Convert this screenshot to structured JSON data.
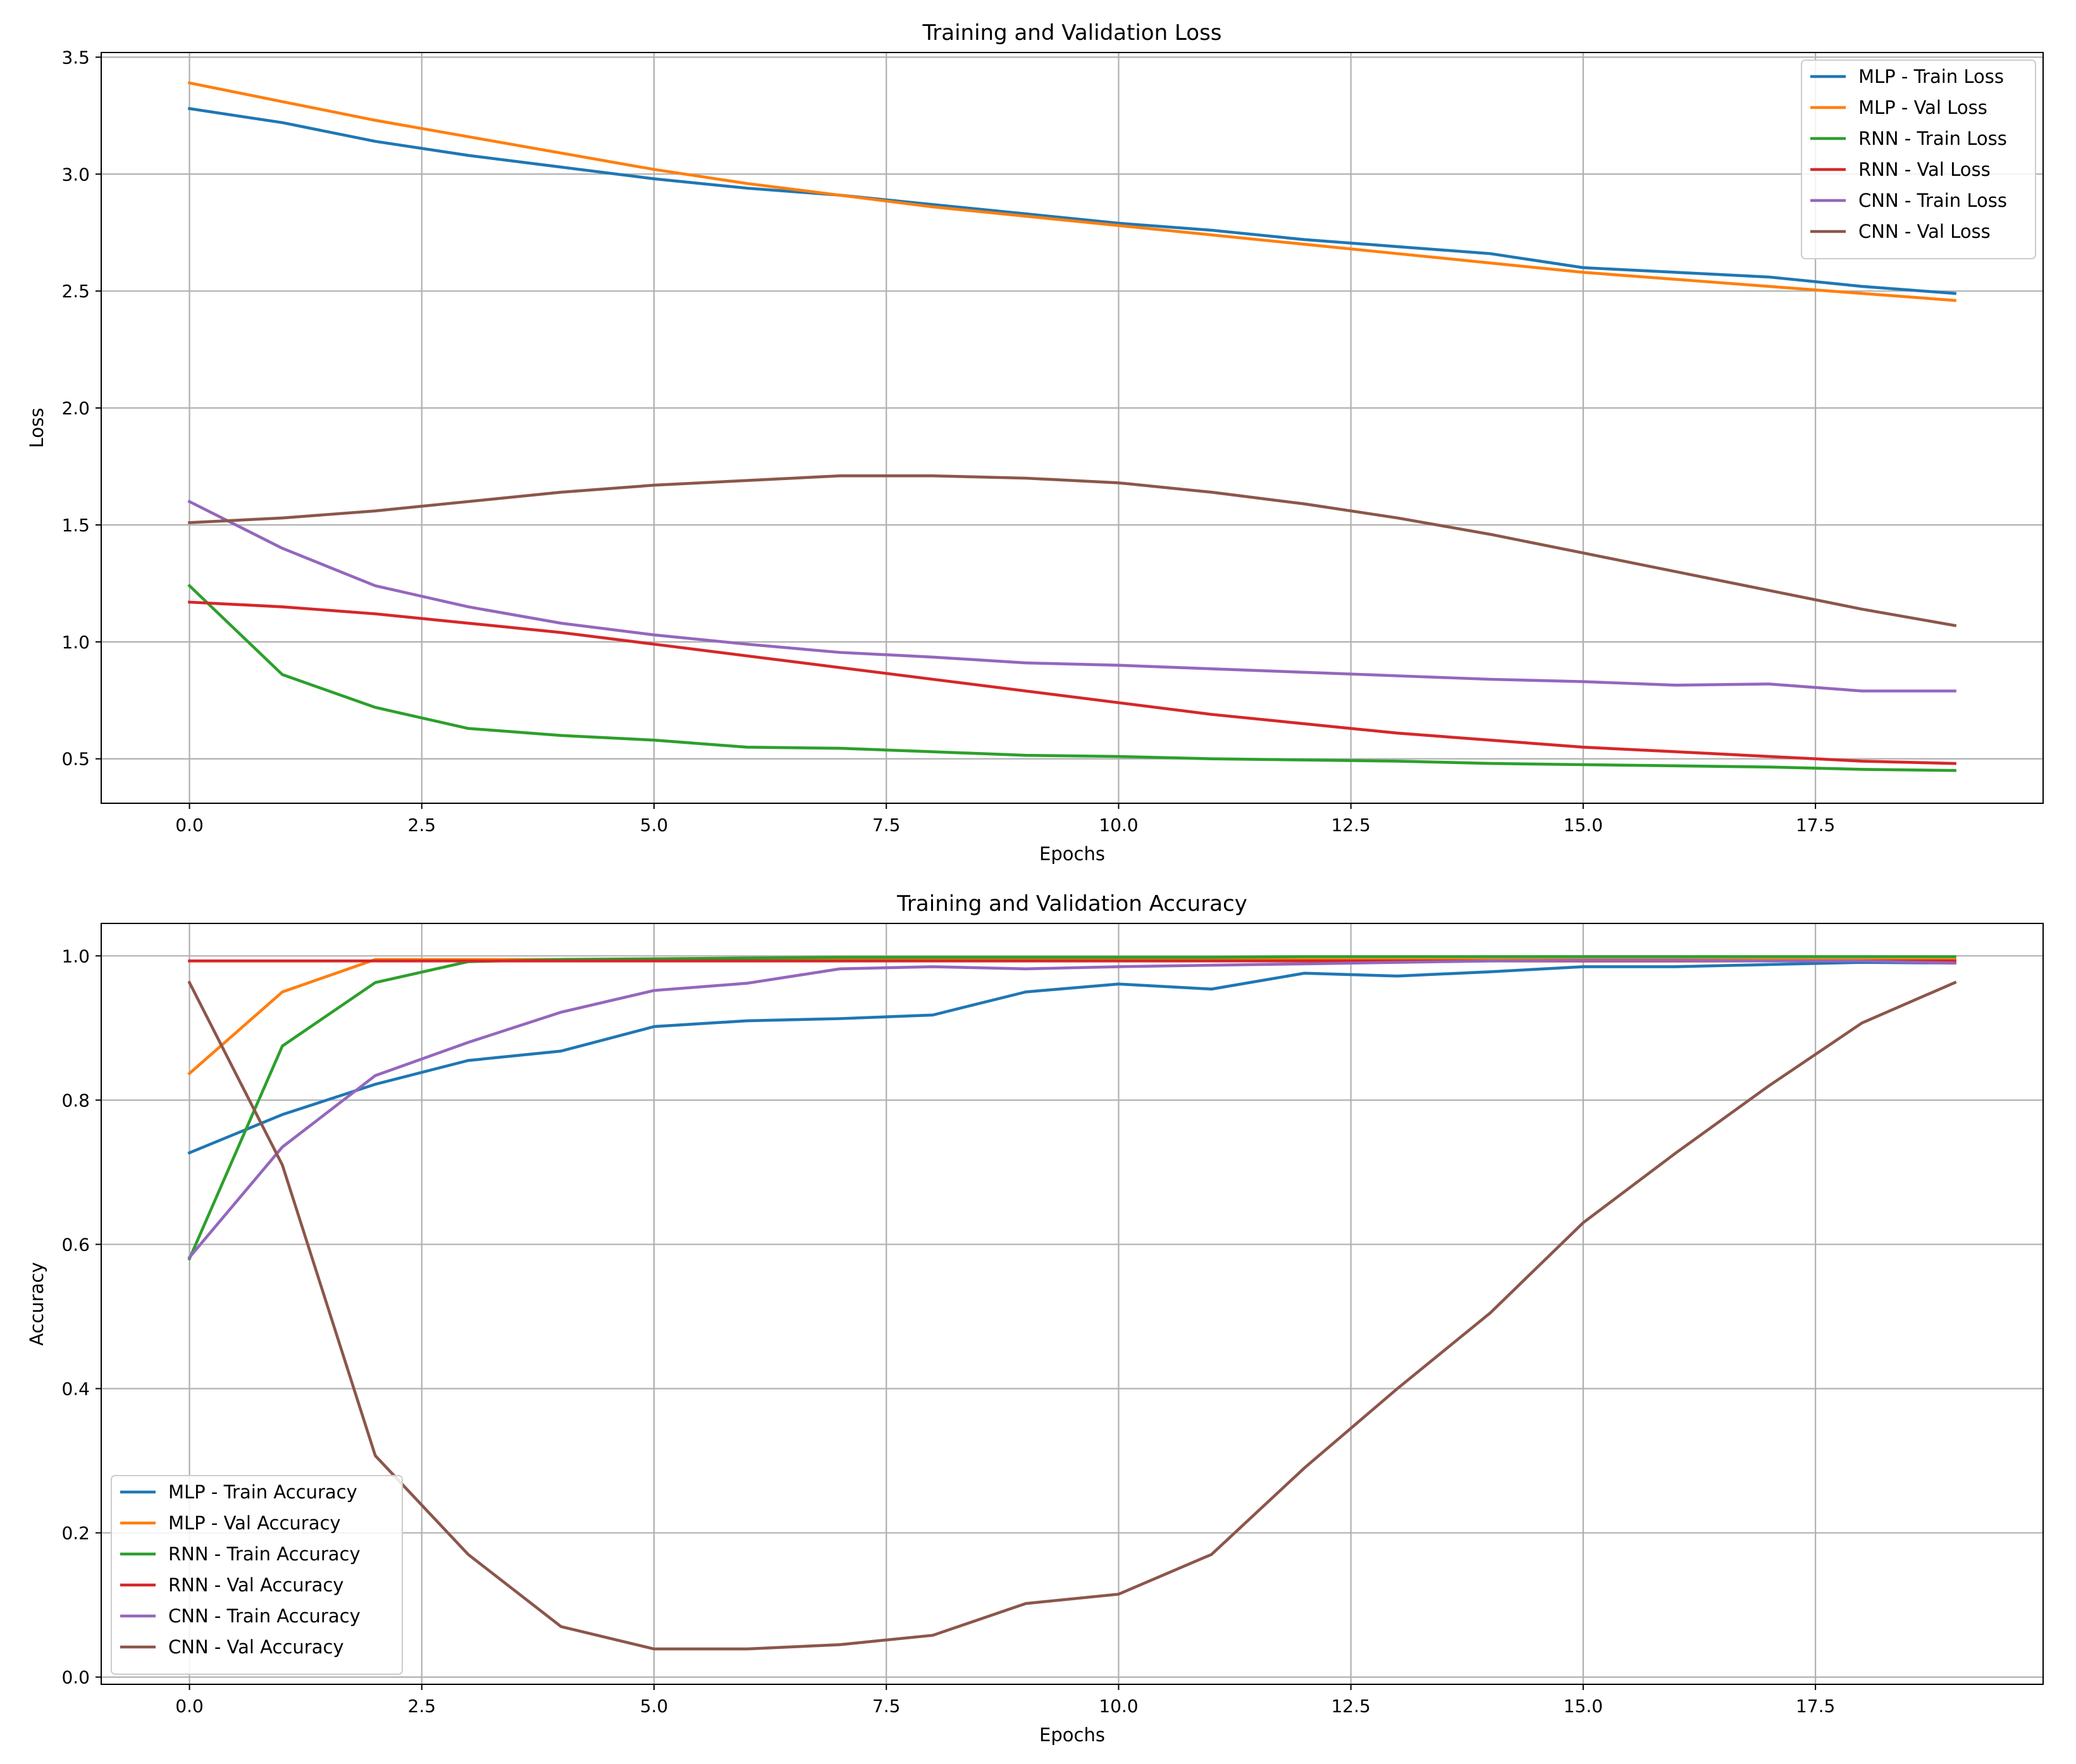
{
  "chart_data": [
    {
      "type": "line",
      "title": "Training and Validation Loss",
      "xlabel": "Epochs",
      "ylabel": "Loss",
      "xlim": [
        -0.95,
        19.95
      ],
      "ylim": [
        0.31,
        3.52
      ],
      "xticks": [
        0.0,
        2.5,
        5.0,
        7.5,
        10.0,
        12.5,
        15.0,
        17.5
      ],
      "xtick_labels": [
        "0.0",
        "2.5",
        "5.0",
        "7.5",
        "10.0",
        "12.5",
        "15.0",
        "17.5"
      ],
      "yticks": [
        0.5,
        1.0,
        1.5,
        2.0,
        2.5,
        3.0,
        3.5
      ],
      "ytick_labels": [
        "0.5",
        "1.0",
        "1.5",
        "2.0",
        "2.5",
        "3.0",
        "3.5"
      ],
      "grid": true,
      "legend_position": "top-right",
      "x": [
        0,
        1,
        2,
        3,
        4,
        5,
        6,
        7,
        8,
        9,
        10,
        11,
        12,
        13,
        14,
        15,
        16,
        17,
        18,
        19
      ],
      "series": [
        {
          "name": "MLP - Train Loss",
          "color": "#1f77b4",
          "values": [
            3.28,
            3.22,
            3.14,
            3.08,
            3.03,
            2.98,
            2.94,
            2.91,
            2.87,
            2.83,
            2.79,
            2.76,
            2.72,
            2.69,
            2.66,
            2.6,
            2.58,
            2.56,
            2.52,
            2.49
          ]
        },
        {
          "name": "MLP - Val Loss",
          "color": "#ff7f0e",
          "values": [
            3.39,
            3.31,
            3.23,
            3.16,
            3.09,
            3.02,
            2.96,
            2.91,
            2.86,
            2.82,
            2.78,
            2.74,
            2.7,
            2.66,
            2.62,
            2.58,
            2.55,
            2.52,
            2.49,
            2.46
          ]
        },
        {
          "name": "RNN - Train Loss",
          "color": "#2ca02c",
          "values": [
            1.24,
            0.86,
            0.72,
            0.63,
            0.6,
            0.58,
            0.55,
            0.545,
            0.53,
            0.515,
            0.51,
            0.5,
            0.495,
            0.49,
            0.48,
            0.475,
            0.47,
            0.465,
            0.455,
            0.45
          ]
        },
        {
          "name": "RNN - Val Loss",
          "color": "#d62728",
          "values": [
            1.17,
            1.15,
            1.12,
            1.08,
            1.04,
            0.99,
            0.94,
            0.89,
            0.84,
            0.79,
            0.74,
            0.69,
            0.65,
            0.61,
            0.58,
            0.55,
            0.53,
            0.51,
            0.49,
            0.48
          ]
        },
        {
          "name": "CNN - Train Loss",
          "color": "#9467bd",
          "values": [
            1.6,
            1.4,
            1.24,
            1.15,
            1.08,
            1.03,
            0.99,
            0.955,
            0.935,
            0.91,
            0.9,
            0.885,
            0.87,
            0.855,
            0.84,
            0.83,
            0.815,
            0.82,
            0.79,
            0.79
          ]
        },
        {
          "name": "CNN - Val Loss",
          "color": "#8c564b",
          "values": [
            1.51,
            1.53,
            1.56,
            1.6,
            1.64,
            1.67,
            1.69,
            1.71,
            1.71,
            1.7,
            1.68,
            1.64,
            1.59,
            1.53,
            1.46,
            1.38,
            1.3,
            1.22,
            1.14,
            1.07
          ]
        }
      ]
    },
    {
      "type": "line",
      "title": "Training and Validation Accuracy",
      "xlabel": "Epochs",
      "ylabel": "Accuracy",
      "xlim": [
        -0.95,
        19.95
      ],
      "ylim": [
        -0.01,
        1.045
      ],
      "xticks": [
        0.0,
        2.5,
        5.0,
        7.5,
        10.0,
        12.5,
        15.0,
        17.5
      ],
      "xtick_labels": [
        "0.0",
        "2.5",
        "5.0",
        "7.5",
        "10.0",
        "12.5",
        "15.0",
        "17.5"
      ],
      "yticks": [
        0.0,
        0.2,
        0.4,
        0.6,
        0.8,
        1.0
      ],
      "ytick_labels": [
        "0.0",
        "0.2",
        "0.4",
        "0.6",
        "0.8",
        "1.0"
      ],
      "grid": true,
      "legend_position": "bottom-left",
      "x": [
        0,
        1,
        2,
        3,
        4,
        5,
        6,
        7,
        8,
        9,
        10,
        11,
        12,
        13,
        14,
        15,
        16,
        17,
        18,
        19
      ],
      "series": [
        {
          "name": "MLP - Train Accuracy",
          "color": "#1f77b4",
          "values": [
            0.727,
            0.78,
            0.822,
            0.855,
            0.868,
            0.902,
            0.91,
            0.913,
            0.918,
            0.95,
            0.961,
            0.954,
            0.976,
            0.972,
            0.978,
            0.985,
            0.985,
            0.988,
            0.991,
            0.99
          ]
        },
        {
          "name": "MLP - Val Accuracy",
          "color": "#ff7f0e",
          "values": [
            0.837,
            0.95,
            0.995,
            0.995,
            0.995,
            0.995,
            0.995,
            0.995,
            0.995,
            0.995,
            0.995,
            0.995,
            0.995,
            0.995,
            0.995,
            0.995,
            0.995,
            0.995,
            0.995,
            0.995
          ]
        },
        {
          "name": "RNN - Train Accuracy",
          "color": "#2ca02c",
          "values": [
            0.58,
            0.875,
            0.963,
            0.992,
            0.995,
            0.996,
            0.997,
            0.998,
            0.998,
            0.998,
            0.998,
            0.998,
            0.999,
            0.999,
            0.999,
            0.999,
            0.999,
            0.999,
            0.999,
            0.999
          ]
        },
        {
          "name": "RNN - Val Accuracy",
          "color": "#d62728",
          "values": [
            0.993,
            0.993,
            0.993,
            0.993,
            0.993,
            0.993,
            0.993,
            0.993,
            0.993,
            0.993,
            0.993,
            0.993,
            0.993,
            0.993,
            0.993,
            0.993,
            0.993,
            0.993,
            0.993,
            0.993
          ]
        },
        {
          "name": "CNN - Train Accuracy",
          "color": "#9467bd",
          "values": [
            0.582,
            0.735,
            0.834,
            0.88,
            0.922,
            0.952,
            0.962,
            0.982,
            0.985,
            0.982,
            0.985,
            0.987,
            0.989,
            0.991,
            0.993,
            0.994,
            0.994,
            0.993,
            0.993,
            0.99
          ]
        },
        {
          "name": "CNN - Val Accuracy",
          "color": "#8c564b",
          "values": [
            0.963,
            0.71,
            0.307,
            0.17,
            0.07,
            0.039,
            0.039,
            0.045,
            0.058,
            0.102,
            0.115,
            0.17,
            0.29,
            0.4,
            0.505,
            0.63,
            0.727,
            0.82,
            0.907,
            0.963
          ]
        }
      ]
    }
  ]
}
